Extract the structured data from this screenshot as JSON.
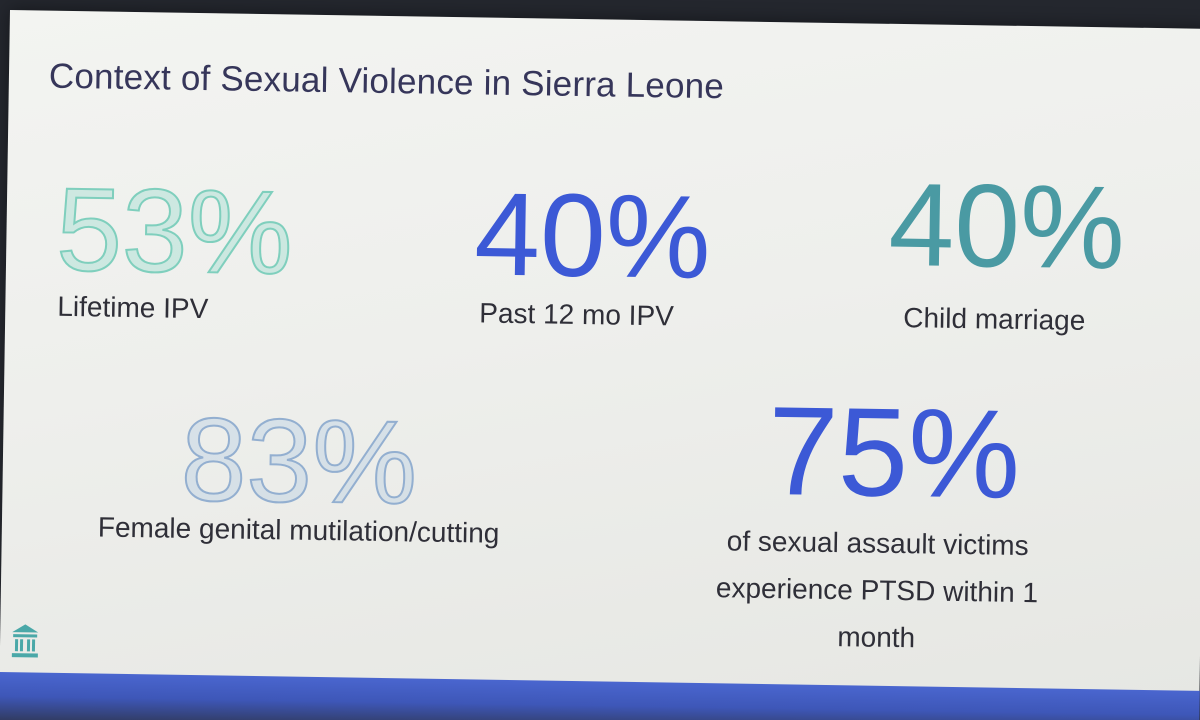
{
  "slide": {
    "title": "Context of Sexual Violence in Sierra Leone"
  },
  "stats": [
    {
      "value": "53%",
      "label": "Lifetime IPV",
      "style": "outline-teal",
      "color": "#7fcfbd"
    },
    {
      "value": "40%",
      "label": "Past 12 mo IPV",
      "style": "solid-blue",
      "color": "#3c59d6"
    },
    {
      "value": "40%",
      "label": "Child marriage",
      "style": "solid-teal",
      "color": "#4a9aa3"
    },
    {
      "value": "83%",
      "label": "Female genital mutilation/cutting",
      "style": "outline-blue",
      "color": "#93afd0"
    },
    {
      "value": "75%",
      "label": "of sexual assault victims experience PTSD within 1 month",
      "style": "solid-blue",
      "color": "#3c59d6"
    }
  ],
  "logo": {
    "icon": "institution-building-icon",
    "color": "#4aa8a8"
  },
  "colors": {
    "slide_background": "#f0f1ee",
    "bottom_accent": "#4a66cf",
    "title_text": "#36365a"
  }
}
